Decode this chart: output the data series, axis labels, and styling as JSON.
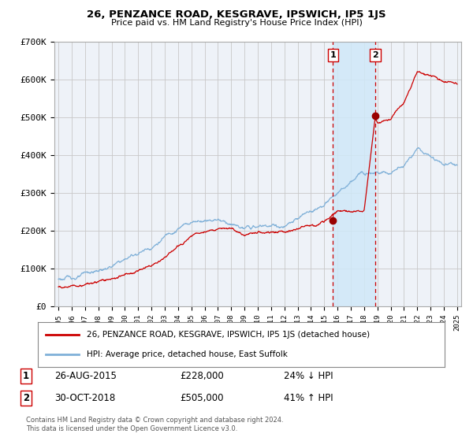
{
  "title": "26, PENZANCE ROAD, KESGRAVE, IPSWICH, IP5 1JS",
  "subtitle": "Price paid vs. HM Land Registry's House Price Index (HPI)",
  "legend_line1": "26, PENZANCE ROAD, KESGRAVE, IPSWICH, IP5 1JS (detached house)",
  "legend_line2": "HPI: Average price, detached house, East Suffolk",
  "sale1_date": "26-AUG-2015",
  "sale1_price": 228000,
  "sale1_hpi_rel": "24% ↓ HPI",
  "sale2_date": "30-OCT-2018",
  "sale2_price": 505000,
  "sale2_hpi_rel": "41% ↑ HPI",
  "sale1_year": 2015.65,
  "sale2_year": 2018.83,
  "hpi_color": "#7fb0d8",
  "house_color": "#cc0000",
  "marker_color": "#990000",
  "vline_color": "#cc0000",
  "shade_color": "#d0e8f8",
  "plot_bg_color": "#eef2f8",
  "grid_color": "#c8c8c8",
  "ylim": [
    0,
    700000
  ],
  "xlim_start": 1995,
  "xlim_end": 2025,
  "footer": "Contains HM Land Registry data © Crown copyright and database right 2024.\nThis data is licensed under the Open Government Licence v3.0.",
  "hpi_waypoints_x": [
    1995,
    1996,
    1997,
    1998,
    1999,
    2000,
    2001,
    2002,
    2003,
    2004,
    2005,
    2006,
    2007,
    2008,
    2009,
    2010,
    2011,
    2012,
    2013,
    2014,
    2015,
    2016,
    2017,
    2018,
    2019,
    2020,
    2021,
    2022,
    2023,
    2024,
    2025
  ],
  "hpi_waypoints_y": [
    72000,
    76000,
    82000,
    89000,
    100000,
    115000,
    135000,
    155000,
    185000,
    215000,
    232000,
    245000,
    255000,
    248000,
    232000,
    232000,
    235000,
    230000,
    240000,
    258000,
    280000,
    305000,
    325000,
    355000,
    375000,
    375000,
    400000,
    445000,
    425000,
    415000,
    420000
  ],
  "house_waypoints_x": [
    1995,
    1996,
    1997,
    1998,
    1999,
    2000,
    2001,
    2002,
    2003,
    2004,
    2005,
    2006,
    2007,
    2008,
    2009,
    2010,
    2011,
    2012,
    2013,
    2014,
    2015,
    2015.65,
    2016,
    2017,
    2018,
    2018.83,
    2019,
    2020,
    2021,
    2022,
    2023,
    2024,
    2025
  ],
  "house_waypoints_y": [
    52000,
    55000,
    60000,
    65000,
    70000,
    78000,
    90000,
    105000,
    125000,
    155000,
    178000,
    192000,
    200000,
    195000,
    170000,
    168000,
    175000,
    178000,
    185000,
    195000,
    210000,
    228000,
    240000,
    248000,
    258000,
    505000,
    490000,
    500000,
    545000,
    620000,
    605000,
    590000,
    580000
  ]
}
